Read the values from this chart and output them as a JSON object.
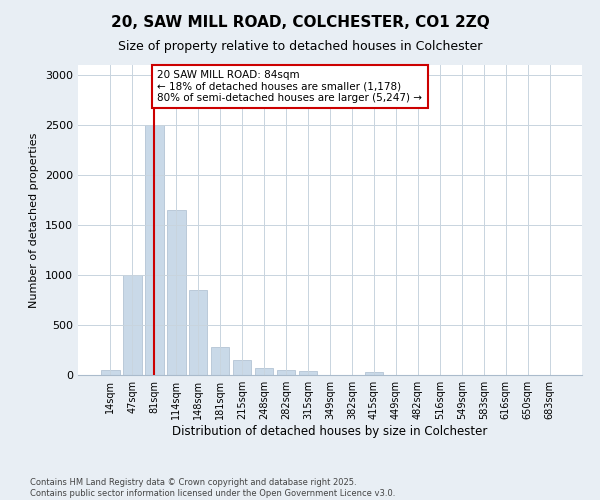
{
  "title1": "20, SAW MILL ROAD, COLCHESTER, CO1 2ZQ",
  "title2": "Size of property relative to detached houses in Colchester",
  "xlabel": "Distribution of detached houses by size in Colchester",
  "ylabel": "Number of detached properties",
  "categories": [
    "14sqm",
    "47sqm",
    "81sqm",
    "114sqm",
    "148sqm",
    "181sqm",
    "215sqm",
    "248sqm",
    "282sqm",
    "315sqm",
    "349sqm",
    "382sqm",
    "415sqm",
    "449sqm",
    "482sqm",
    "516sqm",
    "549sqm",
    "583sqm",
    "616sqm",
    "650sqm",
    "683sqm"
  ],
  "values": [
    50,
    1000,
    2500,
    1650,
    850,
    280,
    150,
    70,
    55,
    45,
    0,
    0,
    30,
    0,
    0,
    0,
    0,
    0,
    0,
    0,
    0
  ],
  "bar_color": "#c9d9e8",
  "bar_edgecolor": "#aabcce",
  "vline_x": 2,
  "vline_color": "#cc0000",
  "annotation_text": "20 SAW MILL ROAD: 84sqm\n← 18% of detached houses are smaller (1,178)\n80% of semi-detached houses are larger (5,247) →",
  "annotation_box_color": "#ffffff",
  "annotation_box_edgecolor": "#cc0000",
  "ylim": [
    0,
    3100
  ],
  "yticks": [
    0,
    500,
    1000,
    1500,
    2000,
    2500,
    3000
  ],
  "footer1": "Contains HM Land Registry data © Crown copyright and database right 2025.",
  "footer2": "Contains public sector information licensed under the Open Government Licence v3.0.",
  "bg_color": "#e8eef4",
  "plot_bg_color": "#ffffff",
  "grid_color": "#c8d4de"
}
